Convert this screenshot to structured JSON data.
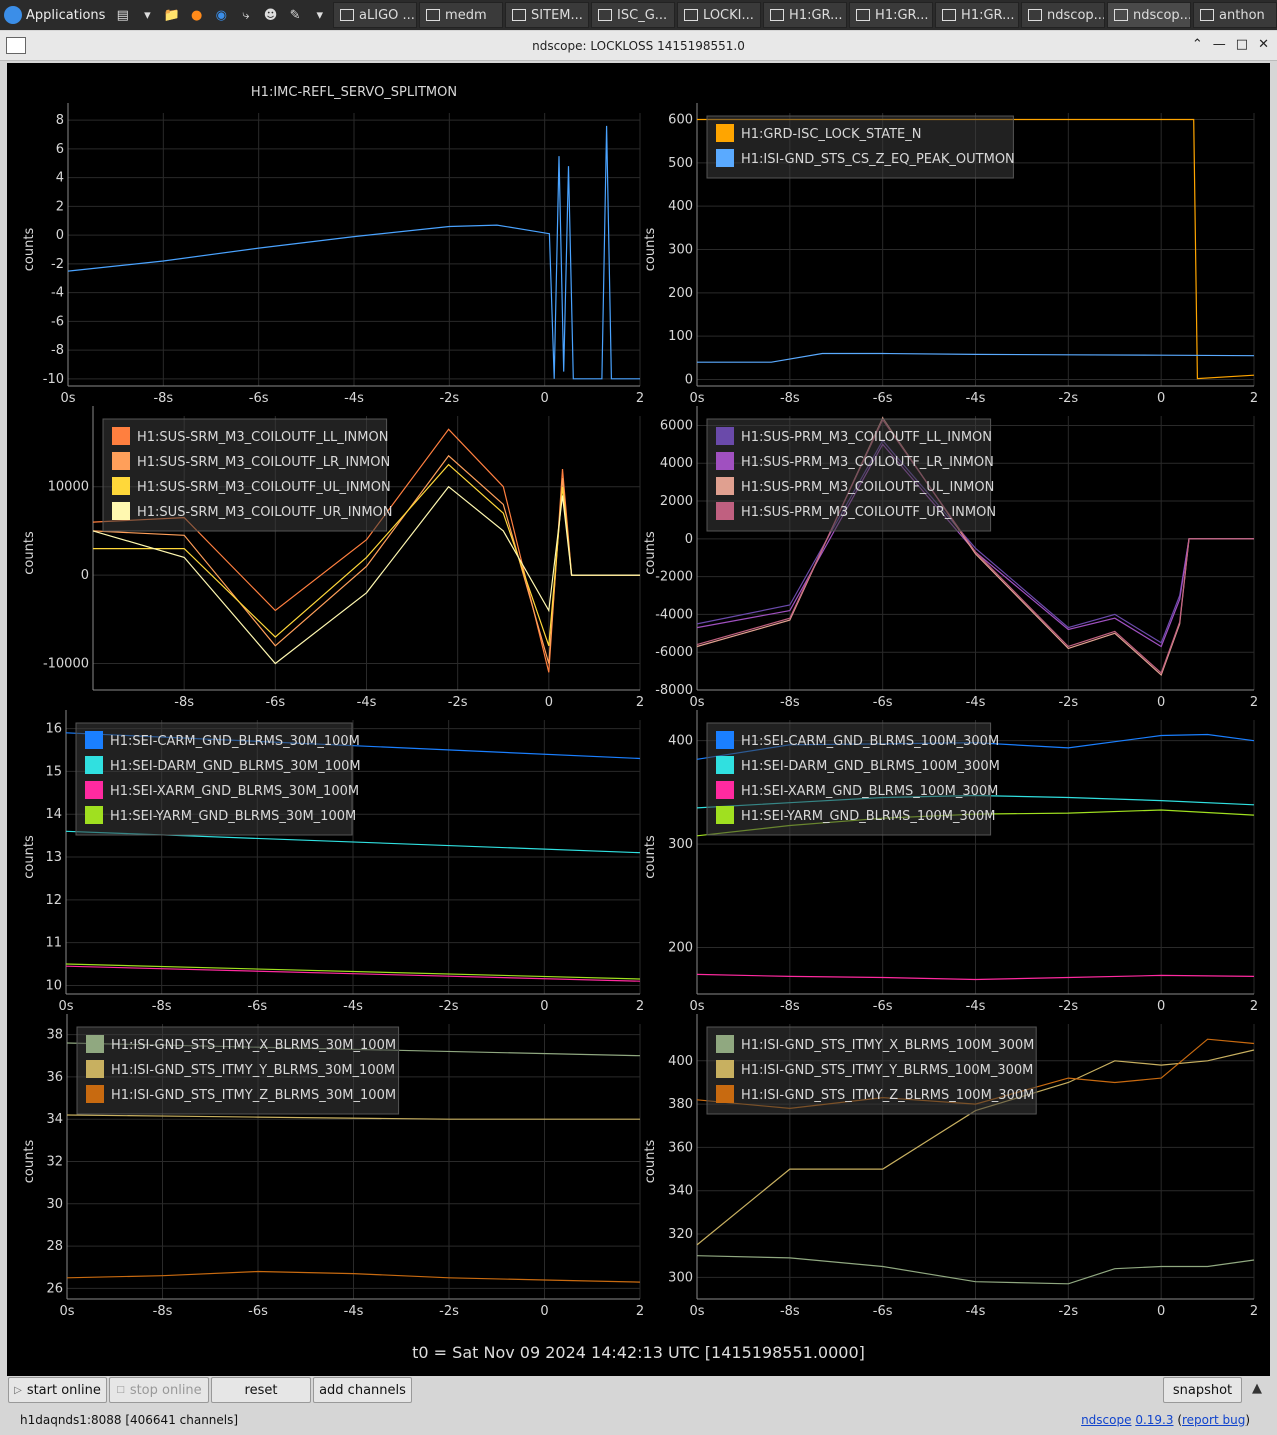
{
  "taskbar": {
    "apps_label": "Applications",
    "tasks": [
      "aLIGO ...",
      "medm",
      "SITEM...",
      "ISC_G...",
      "LOCKI...",
      "H1:GR...",
      "H1:GR...",
      "H1:GR...",
      "ndscop...",
      "ndscop...",
      "anthon"
    ]
  },
  "window": {
    "title": "ndscope: LOCKLOSS 1415198551.0"
  },
  "t0_label": "t0 = Sat Nov 09 2024 14:42:13 UTC [1415198551.0000]",
  "buttons": {
    "start_online": "start online",
    "stop_online": "stop online",
    "reset": "reset",
    "add_channels": "add channels",
    "snapshot": "snapshot"
  },
  "status": {
    "server": "h1daqnds1:8088  [406641 channels]",
    "app_name": "ndscope",
    "version": "0.19.3",
    "report_bug": "report bug"
  },
  "colors": {
    "background": "#000000",
    "grid": "#2a2a2a",
    "axis": "#8a8a8a",
    "text": "#d8d8d8"
  },
  "chart_data": [
    {
      "type": "line",
      "title": "H1:IMC-REFL_SERVO_SPLITMON",
      "ylabel": "counts",
      "ylim": [
        -10.5,
        8.5
      ],
      "yticks": [
        8,
        6,
        4,
        2,
        0,
        -2,
        -4,
        -6,
        -8,
        -10
      ],
      "xlim": [
        -10,
        2
      ],
      "xtick_labels": [
        "0s",
        "-8s",
        "-6s",
        "-4s",
        "-2s",
        "0",
        "2"
      ],
      "legend": "none",
      "series": [
        {
          "color": "#4aa3ff",
          "x": [
            -10,
            -8,
            -6,
            -4,
            -2,
            -1,
            0.1,
            0.2,
            0.3,
            0.4,
            0.5,
            0.6,
            0.7,
            1.2,
            1.3,
            1.4,
            1.5,
            2
          ],
          "y": [
            -2.5,
            -1.8,
            -0.9,
            -0.1,
            0.6,
            0.7,
            0.1,
            -10,
            5.5,
            -9.5,
            4.8,
            -10,
            -10,
            -10,
            7.6,
            -10,
            -10,
            -10
          ]
        }
      ]
    },
    {
      "type": "line",
      "title": "",
      "ylabel": "counts",
      "ylim": [
        -15,
        615
      ],
      "yticks": [
        600,
        500,
        400,
        300,
        200,
        100,
        0
      ],
      "xlim": [
        -10,
        2
      ],
      "xtick_labels": [
        "0s",
        "-8s",
        "-6s",
        "-4s",
        "-2s",
        "0",
        "2"
      ],
      "legend": "top-left",
      "series": [
        {
          "name": "H1:GRD-ISC_LOCK_STATE_N",
          "color": "#ffa500",
          "x": [
            -10,
            0.7,
            0.78,
            2
          ],
          "y": [
            600,
            600,
            2,
            10
          ]
        },
        {
          "name": "H1:ISI-GND_STS_CS_Z_EQ_PEAK_OUTMON",
          "color": "#5aaaff",
          "x": [
            -10,
            -8.4,
            -7.3,
            -6,
            -4,
            -2,
            0,
            2
          ],
          "y": [
            40,
            40,
            60,
            60,
            58,
            57,
            56,
            55
          ]
        }
      ]
    },
    {
      "type": "line",
      "title": "",
      "ylabel": "counts",
      "ylim": [
        -13000,
        18000
      ],
      "yticks": [
        10000,
        0,
        -10000
      ],
      "ytick_labels": [
        "10000",
        "0",
        "-10000"
      ],
      "xlim": [
        -10,
        2
      ],
      "xtick_labels": [
        "",
        "-8s",
        "-6s",
        "-4s",
        "-2s",
        "0",
        "2"
      ],
      "legend": "top-left",
      "series": [
        {
          "name": "H1:SUS-SRM_M3_COILOUTF_LL_INMON",
          "color": "#ff7f3f",
          "x": [
            -10,
            -8,
            -6,
            -4,
            -2.2,
            -1,
            0,
            0.3,
            0.5,
            0.7,
            2
          ],
          "y": [
            6000,
            6500,
            -4000,
            4000,
            16500,
            10000,
            -11000,
            12000,
            0,
            0,
            0
          ]
        },
        {
          "name": "H1:SUS-SRM_M3_COILOUTF_LR_INMON",
          "color": "#ff9f5a",
          "x": [
            -10,
            -8,
            -6,
            -4,
            -2.2,
            -1,
            0,
            0.3,
            0.5,
            0.7,
            2
          ],
          "y": [
            5000,
            4500,
            -8000,
            1000,
            13500,
            8000,
            -10000,
            11000,
            0,
            0,
            0
          ]
        },
        {
          "name": "H1:SUS-SRM_M3_COILOUTF_UL_INMON",
          "color": "#ffd83a",
          "x": [
            -10,
            -8,
            -6,
            -4,
            -2.2,
            -1,
            0,
            0.3,
            0.5,
            0.7,
            2
          ],
          "y": [
            3000,
            3000,
            -7000,
            2000,
            12500,
            7000,
            -8000,
            10000,
            0,
            0,
            0
          ]
        },
        {
          "name": "H1:SUS-SRM_M3_COILOUTF_UR_INMON",
          "color": "#fff8b0",
          "x": [
            -10,
            -8,
            -6,
            -4,
            -2.2,
            -1,
            0,
            0.3,
            0.5,
            0.7,
            2
          ],
          "y": [
            5000,
            2000,
            -10000,
            -2000,
            10000,
            5000,
            -4000,
            9000,
            0,
            0,
            0
          ]
        }
      ]
    },
    {
      "type": "line",
      "title": "",
      "ylabel": "counts",
      "ylim": [
        -8000,
        6500
      ],
      "yticks": [
        6000,
        4000,
        2000,
        0,
        -2000,
        -4000,
        -6000,
        -8000
      ],
      "xlim": [
        -10,
        2
      ],
      "xtick_labels": [
        "0s",
        "-8s",
        "-6s",
        "-4s",
        "-2s",
        "0",
        "2"
      ],
      "legend": "top-left",
      "series": [
        {
          "name": "H1:SUS-PRM_M3_COILOUTF_LL_INMON",
          "color": "#6a4aaa",
          "x": [
            -10,
            -8,
            -6,
            -4,
            -2,
            -1,
            0,
            0.4,
            0.6,
            2
          ],
          "y": [
            -4500,
            -3500,
            5200,
            -500,
            -4700,
            -4000,
            -5500,
            -3000,
            0,
            0
          ]
        },
        {
          "name": "H1:SUS-PRM_M3_COILOUTF_LR_INMON",
          "color": "#a050c0",
          "x": [
            -10,
            -8,
            -6,
            -4,
            -2,
            -1,
            0,
            0.4,
            0.6,
            2
          ],
          "y": [
            -4700,
            -3800,
            5000,
            -700,
            -4800,
            -4200,
            -5700,
            -3200,
            0,
            0
          ]
        },
        {
          "name": "H1:SUS-PRM_M3_COILOUTF_UL_INMON",
          "color": "#e0a090",
          "x": [
            -10,
            -8,
            -6,
            -4,
            -2,
            -1,
            0,
            0.4,
            0.6,
            2
          ],
          "y": [
            -5700,
            -4300,
            6400,
            -800,
            -5800,
            -5000,
            -7200,
            -4500,
            0,
            0
          ]
        },
        {
          "name": "H1:SUS-PRM_M3_COILOUTF_UR_INMON",
          "color": "#c06080",
          "x": [
            -10,
            -8,
            -6,
            -4,
            -2,
            -1,
            0,
            0.4,
            0.6,
            2
          ],
          "y": [
            -5600,
            -4200,
            6300,
            -700,
            -5700,
            -4900,
            -7100,
            -4400,
            0,
            0
          ]
        }
      ]
    },
    {
      "type": "line",
      "title": "",
      "ylabel": "counts",
      "ylim": [
        9.8,
        16.2
      ],
      "yticks": [
        16,
        15,
        14,
        13,
        12,
        11,
        10
      ],
      "xlim": [
        -10,
        2
      ],
      "xtick_labels": [
        "0s",
        "-8s",
        "-6s",
        "-4s",
        "-2s",
        "0",
        "2"
      ],
      "legend": "top-left",
      "series": [
        {
          "name": "H1:SEI-CARM_GND_BLRMS_30M_100M",
          "color": "#1a7fff",
          "x": [
            -10,
            2
          ],
          "y": [
            15.9,
            15.3
          ]
        },
        {
          "name": "H1:SEI-DARM_GND_BLRMS_30M_100M",
          "color": "#30e0e0",
          "x": [
            -10,
            2
          ],
          "y": [
            13.6,
            13.1
          ]
        },
        {
          "name": "H1:SEI-XARM_GND_BLRMS_30M_100M",
          "color": "#ff2aa0",
          "x": [
            -10,
            2
          ],
          "y": [
            10.45,
            10.1
          ]
        },
        {
          "name": "H1:SEI-YARM_GND_BLRMS_30M_100M",
          "color": "#a0e020",
          "x": [
            -10,
            2
          ],
          "y": [
            10.5,
            10.15
          ]
        }
      ]
    },
    {
      "type": "line",
      "title": "",
      "ylabel": "counts",
      "ylim": [
        155,
        420
      ],
      "yticks": [
        400,
        300,
        200
      ],
      "xlim": [
        -10,
        2
      ],
      "xtick_labels": [
        "0s",
        "-8s",
        "-6s",
        "-4s",
        "-2s",
        "0",
        "2"
      ],
      "legend": "top-left",
      "series": [
        {
          "name": "H1:SEI-CARM_GND_BLRMS_100M_300M",
          "color": "#1a7fff",
          "x": [
            -10,
            -8,
            -6,
            -4,
            -2,
            0,
            1,
            2
          ],
          "y": [
            382,
            396,
            397,
            398,
            393,
            405,
            406,
            400
          ]
        },
        {
          "name": "H1:SEI-DARM_GND_BLRMS_100M_300M",
          "color": "#30e0e0",
          "x": [
            -10,
            -8,
            -6,
            -4,
            -2,
            0,
            2
          ],
          "y": [
            335,
            340,
            345,
            347,
            345,
            342,
            338
          ]
        },
        {
          "name": "H1:SEI-XARM_GND_BLRMS_100M_300M",
          "color": "#ff2aa0",
          "x": [
            -10,
            -8,
            -6,
            -4,
            -2,
            0,
            2
          ],
          "y": [
            174,
            172,
            171,
            169,
            171,
            173,
            172
          ]
        },
        {
          "name": "H1:SEI-YARM_GND_BLRMS_100M_300M",
          "color": "#a0e020",
          "x": [
            -10,
            -8,
            -6,
            -4,
            -2,
            0,
            2
          ],
          "y": [
            308,
            318,
            325,
            329,
            330,
            333,
            328
          ]
        }
      ]
    },
    {
      "type": "line",
      "title": "",
      "ylabel": "counts",
      "ylim": [
        25.5,
        38.5
      ],
      "yticks": [
        38,
        36,
        34,
        32,
        30,
        28,
        26
      ],
      "xlim": [
        -10,
        2
      ],
      "xtick_labels": [
        "0s",
        "-8s",
        "-6s",
        "-4s",
        "-2s",
        "0",
        "2"
      ],
      "legend": "top-left",
      "series": [
        {
          "name": "H1:ISI-GND_STS_ITMY_X_BLRMS_30M_100M",
          "color": "#90a880",
          "x": [
            -10,
            2
          ],
          "y": [
            37.6,
            37.0
          ]
        },
        {
          "name": "H1:ISI-GND_STS_ITMY_Y_BLRMS_30M_100M",
          "color": "#c8b060",
          "x": [
            -10,
            -6,
            -2,
            2
          ],
          "y": [
            34.2,
            34.1,
            34.0,
            34.0
          ]
        },
        {
          "name": "H1:ISI-GND_STS_ITMY_Z_BLRMS_30M_100M",
          "color": "#c86a10",
          "x": [
            -10,
            -8,
            -6,
            -4,
            -2,
            0,
            2
          ],
          "y": [
            26.5,
            26.6,
            26.8,
            26.7,
            26.5,
            26.4,
            26.3
          ]
        }
      ]
    },
    {
      "type": "line",
      "title": "",
      "ylabel": "counts",
      "ylim": [
        290,
        417
      ],
      "yticks": [
        400,
        380,
        360,
        340,
        320,
        300
      ],
      "xlim": [
        -10,
        2
      ],
      "xtick_labels": [
        "0s",
        "-8s",
        "-6s",
        "-4s",
        "-2s",
        "0",
        "2"
      ],
      "legend": "top-left",
      "series": [
        {
          "name": "H1:ISI-GND_STS_ITMY_X_BLRMS_100M_300M",
          "color": "#90a880",
          "x": [
            -10,
            -8,
            -6,
            -4,
            -2,
            -1,
            0,
            1,
            2
          ],
          "y": [
            310,
            309,
            305,
            298,
            297,
            304,
            305,
            305,
            308
          ]
        },
        {
          "name": "H1:ISI-GND_STS_ITMY_Y_BLRMS_100M_300M",
          "color": "#c8b060",
          "x": [
            -10,
            -8,
            -6,
            -4,
            -2,
            -1,
            0,
            1,
            2
          ],
          "y": [
            315,
            350,
            350,
            377,
            390,
            400,
            398,
            400,
            405
          ]
        },
        {
          "name": "H1:ISI-GND_STS_ITMY_Z_BLRMS_100M_300M",
          "color": "#c86a10",
          "x": [
            -10,
            -8,
            -6,
            -4,
            -2,
            -1,
            0,
            1,
            2
          ],
          "y": [
            382,
            378,
            383,
            380,
            392,
            390,
            392,
            410,
            408
          ]
        }
      ]
    }
  ]
}
